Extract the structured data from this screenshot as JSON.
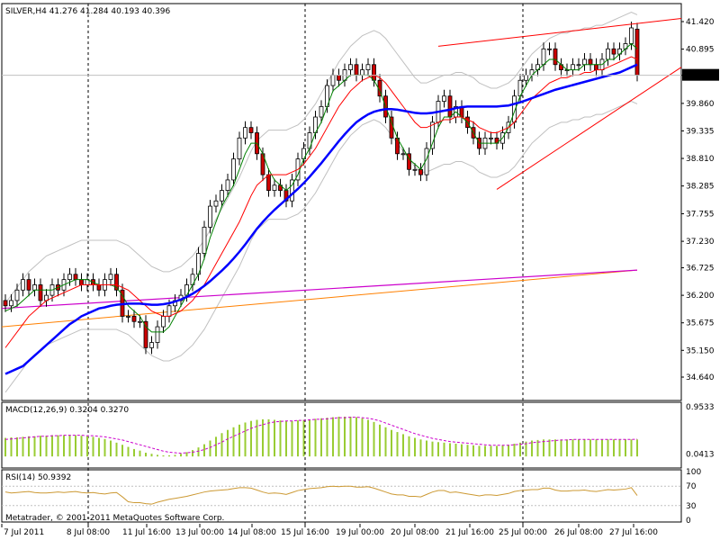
{
  "header": {
    "symbol_line": "SILVER,H4  41.276 41.284 40.193 40.396",
    "last_price": "40.396"
  },
  "footer": {
    "copyright": "Metatrader, © 2001-2011 MetaQuotes Software Corp."
  },
  "colors": {
    "up_candle": "#ffffff",
    "down_candle": "#cc0000",
    "bollinger": "#c0c0c0",
    "ma_fast": "#008000",
    "ma_mid": "#ff0000",
    "ma_slow": "#0000ff",
    "ma_long_a": "#ff8000",
    "ma_long_b": "#cc00cc",
    "trendline": "#ff0000",
    "macd_hist": "#99cc33",
    "macd_signal": "#cc00cc",
    "rsi_line": "#cc9933"
  },
  "chart_data": [
    {
      "type": "candlestick",
      "title": "SILVER,H4",
      "ohlc_readout": {
        "open": 41.276,
        "high": 41.284,
        "low": 40.193,
        "close": 40.396
      },
      "y_ticks": [
        "41.420",
        "40.895",
        "40.396",
        "39.860",
        "39.335",
        "38.810",
        "38.285",
        "37.755",
        "37.230",
        "36.725",
        "36.200",
        "35.675",
        "35.150",
        "34.640"
      ],
      "ylim": [
        34.64,
        41.42
      ],
      "x_ticks": [
        "7 Jul 2011",
        "8 Jul 08:00",
        "11 Jul 16:00",
        "13 Jul 00:00",
        "14 Jul 08:00",
        "15 Jul 16:00",
        "19 Jul 00:00",
        "20 Jul 08:00",
        "21 Jul 16:00",
        "25 Jul 00:00",
        "26 Jul 08:00",
        "27 Jul 16:00"
      ],
      "close": [
        36.0,
        36.1,
        36.3,
        36.5,
        36.3,
        36.4,
        36.1,
        36.2,
        36.4,
        36.3,
        36.5,
        36.6,
        36.5,
        36.4,
        36.5,
        36.4,
        36.3,
        36.5,
        36.6,
        36.3,
        35.8,
        35.8,
        35.7,
        35.7,
        35.2,
        35.3,
        35.6,
        35.8,
        36.0,
        36.1,
        36.2,
        36.4,
        36.6,
        37.0,
        37.5,
        37.9,
        38.0,
        38.2,
        38.4,
        38.8,
        39.2,
        39.4,
        39.3,
        38.9,
        38.5,
        38.2,
        38.3,
        38.2,
        38.0,
        38.4,
        38.8,
        39.0,
        39.3,
        39.6,
        39.8,
        40.2,
        40.4,
        40.3,
        40.5,
        40.6,
        40.4,
        40.5,
        40.6,
        40.3,
        40.0,
        39.6,
        39.2,
        38.9,
        38.9,
        38.6,
        38.6,
        38.5,
        39.0,
        39.5,
        39.9,
        40.0,
        39.6,
        39.8,
        39.6,
        39.4,
        39.2,
        39.0,
        39.2,
        39.2,
        39.1,
        39.3,
        39.5,
        40.0,
        40.3,
        40.4,
        40.5,
        40.6,
        40.9,
        40.9,
        40.6,
        40.5,
        40.5,
        40.6,
        40.6,
        40.7,
        40.6,
        40.5,
        40.7,
        40.9,
        40.8,
        40.9,
        41.0,
        41.3,
        40.4
      ],
      "open": [
        36.1,
        36.0,
        36.1,
        36.3,
        36.5,
        36.3,
        36.4,
        36.1,
        36.2,
        36.4,
        36.3,
        36.5,
        36.6,
        36.5,
        36.4,
        36.5,
        36.4,
        36.3,
        36.5,
        36.6,
        36.3,
        35.8,
        35.8,
        35.7,
        35.7,
        35.2,
        35.3,
        35.6,
        35.8,
        36.0,
        36.1,
        36.2,
        36.4,
        36.6,
        37.0,
        37.5,
        37.9,
        38.0,
        38.2,
        38.4,
        38.8,
        39.2,
        39.4,
        39.3,
        38.9,
        38.5,
        38.2,
        38.3,
        38.2,
        38.0,
        38.4,
        38.8,
        39.0,
        39.3,
        39.6,
        39.8,
        40.2,
        40.4,
        40.3,
        40.5,
        40.6,
        40.4,
        40.5,
        40.6,
        40.3,
        40.0,
        39.6,
        39.2,
        38.9,
        38.9,
        38.6,
        38.6,
        38.5,
        39.0,
        39.5,
        39.9,
        40.0,
        39.6,
        39.8,
        39.6,
        39.4,
        39.2,
        39.0,
        39.2,
        39.2,
        39.1,
        39.3,
        39.5,
        40.0,
        40.3,
        40.4,
        40.5,
        40.6,
        40.9,
        40.9,
        40.6,
        40.5,
        40.5,
        40.6,
        40.6,
        40.7,
        40.6,
        40.5,
        40.7,
        40.9,
        40.8,
        40.9,
        41.0,
        41.276
      ],
      "series": [
        {
          "name": "MA fast",
          "values": [
            35.9,
            35.95,
            36.0,
            36.1,
            36.2,
            36.3,
            36.3,
            36.3,
            36.3,
            36.35,
            36.4,
            36.45,
            36.5,
            36.5,
            36.5,
            36.45,
            36.4,
            36.4,
            36.4,
            36.35,
            36.2,
            36.0,
            35.9,
            35.8,
            35.6,
            35.5,
            35.5,
            35.5,
            35.6,
            35.8,
            36.0,
            36.2,
            36.4,
            36.6,
            36.9,
            37.3,
            37.6,
            37.9,
            38.1,
            38.3,
            38.6,
            38.9,
            39.1,
            39.1,
            38.9,
            38.6,
            38.4,
            38.3,
            38.2,
            38.3,
            38.5,
            38.8,
            39.0,
            39.3,
            39.5,
            39.8,
            40.1,
            40.2,
            40.3,
            40.4,
            40.4,
            40.4,
            40.4,
            40.3,
            40.1,
            39.8,
            39.5,
            39.2,
            39.0,
            38.8,
            38.7,
            38.6,
            38.8,
            39.1,
            39.4,
            39.6,
            39.6,
            39.7,
            39.6,
            39.5,
            39.3,
            39.1,
            39.1,
            39.1,
            39.1,
            39.2,
            39.4,
            39.7,
            40.0,
            40.2,
            40.4,
            40.5,
            40.6,
            40.7,
            40.7,
            40.6,
            40.5,
            40.5,
            40.5,
            40.6,
            40.6,
            40.6,
            40.6,
            40.7,
            40.7,
            40.8,
            40.9,
            41.0,
            40.9
          ]
        },
        {
          "name": "MA mid",
          "values": [
            35.2,
            35.35,
            35.5,
            35.65,
            35.8,
            35.9,
            36.0,
            36.1,
            36.15,
            36.2,
            36.25,
            36.3,
            36.35,
            36.4,
            36.4,
            36.4,
            36.4,
            36.4,
            36.4,
            36.4,
            36.35,
            36.3,
            36.2,
            36.1,
            36.0,
            35.9,
            35.85,
            35.8,
            35.8,
            35.85,
            35.9,
            36.0,
            36.1,
            36.25,
            36.4,
            36.6,
            36.8,
            37.0,
            37.2,
            37.4,
            37.6,
            37.85,
            38.1,
            38.3,
            38.4,
            38.5,
            38.5,
            38.5,
            38.5,
            38.55,
            38.6,
            38.7,
            38.85,
            39.0,
            39.2,
            39.4,
            39.6,
            39.8,
            39.95,
            40.1,
            40.2,
            40.3,
            40.35,
            40.4,
            40.35,
            40.25,
            40.1,
            39.95,
            39.8,
            39.65,
            39.5,
            39.4,
            39.4,
            39.45,
            39.5,
            39.55,
            39.55,
            39.6,
            39.6,
            39.55,
            39.5,
            39.4,
            39.35,
            39.3,
            39.3,
            39.35,
            39.4,
            39.5,
            39.65,
            39.8,
            39.95,
            40.05,
            40.15,
            40.25,
            40.3,
            40.35,
            40.35,
            40.4,
            40.4,
            40.45,
            40.45,
            40.5,
            40.5,
            40.55,
            40.6,
            40.65,
            40.7,
            40.75,
            40.7
          ]
        },
        {
          "name": "MA slow",
          "values": [
            34.7,
            34.75,
            34.8,
            34.85,
            34.95,
            35.05,
            35.15,
            35.25,
            35.35,
            35.45,
            35.55,
            35.65,
            35.72,
            35.8,
            35.85,
            35.9,
            35.95,
            35.97,
            36.0,
            36.02,
            36.03,
            36.04,
            36.04,
            36.04,
            36.03,
            36.02,
            36.02,
            36.03,
            36.05,
            36.08,
            36.12,
            36.17,
            36.23,
            36.3,
            36.38,
            36.47,
            36.57,
            36.67,
            36.78,
            36.9,
            37.03,
            37.17,
            37.32,
            37.47,
            37.6,
            37.72,
            37.83,
            37.93,
            38.03,
            38.13,
            38.23,
            38.34,
            38.46,
            38.59,
            38.72,
            38.86,
            39.0,
            39.14,
            39.27,
            39.39,
            39.5,
            39.58,
            39.65,
            39.7,
            39.73,
            39.75,
            39.75,
            39.74,
            39.72,
            39.7,
            39.68,
            39.67,
            39.67,
            39.68,
            39.7,
            39.72,
            39.74,
            39.77,
            39.79,
            39.8,
            39.8,
            39.8,
            39.8,
            39.8,
            39.8,
            39.81,
            39.82,
            39.85,
            39.88,
            39.92,
            39.96,
            40.0,
            40.04,
            40.08,
            40.12,
            40.15,
            40.18,
            40.21,
            40.24,
            40.27,
            40.3,
            40.33,
            40.36,
            40.39,
            40.42,
            40.45,
            40.5,
            40.55,
            40.6
          ]
        },
        {
          "name": "MA long A",
          "start": 35.6,
          "end": 36.68
        },
        {
          "name": "MA long B",
          "start": 35.95,
          "end": 36.68
        }
      ],
      "trendlines": [
        {
          "from": {
            "bar": 74,
            "price": 40.95
          },
          "to": {
            "bar": 133,
            "price": 41.48
          }
        },
        {
          "from": {
            "bar": 84,
            "price": 38.22
          },
          "to": {
            "bar": 133,
            "price": 40.55
          }
        }
      ]
    },
    {
      "type": "bar",
      "title": "MACD(12,26,9) 0.3204 0.3270",
      "y_ticks": [
        "0.9533",
        "0.0413"
      ],
      "ylim": [
        -0.15,
        0.9533
      ],
      "values": [
        0.35,
        0.36,
        0.36,
        0.37,
        0.38,
        0.38,
        0.39,
        0.39,
        0.4,
        0.4,
        0.4,
        0.4,
        0.4,
        0.39,
        0.38,
        0.37,
        0.35,
        0.33,
        0.3,
        0.26,
        0.22,
        0.18,
        0.14,
        0.11,
        0.07,
        0.05,
        0.03,
        0.02,
        0.02,
        0.03,
        0.05,
        0.08,
        0.12,
        0.17,
        0.23,
        0.3,
        0.37,
        0.44,
        0.5,
        0.55,
        0.6,
        0.64,
        0.67,
        0.69,
        0.7,
        0.7,
        0.69,
        0.68,
        0.67,
        0.67,
        0.68,
        0.69,
        0.7,
        0.71,
        0.72,
        0.73,
        0.74,
        0.75,
        0.75,
        0.75,
        0.74,
        0.72,
        0.69,
        0.65,
        0.6,
        0.55,
        0.5,
        0.46,
        0.42,
        0.38,
        0.35,
        0.32,
        0.3,
        0.28,
        0.27,
        0.26,
        0.25,
        0.24,
        0.23,
        0.22,
        0.21,
        0.2,
        0.2,
        0.2,
        0.2,
        0.21,
        0.22,
        0.24,
        0.26,
        0.28,
        0.3,
        0.31,
        0.32,
        0.32,
        0.32,
        0.32,
        0.32,
        0.32,
        0.32,
        0.32,
        0.32,
        0.32,
        0.32,
        0.32,
        0.32,
        0.32,
        0.32,
        0.32,
        0.32
      ],
      "signal": [
        0.32,
        0.33,
        0.34,
        0.35,
        0.36,
        0.37,
        0.38,
        0.38,
        0.39,
        0.39,
        0.4,
        0.4,
        0.4,
        0.4,
        0.39,
        0.39,
        0.38,
        0.37,
        0.35,
        0.33,
        0.31,
        0.28,
        0.25,
        0.22,
        0.19,
        0.16,
        0.13,
        0.1,
        0.08,
        0.07,
        0.06,
        0.07,
        0.08,
        0.1,
        0.13,
        0.17,
        0.22,
        0.27,
        0.33,
        0.38,
        0.43,
        0.48,
        0.53,
        0.57,
        0.6,
        0.63,
        0.65,
        0.66,
        0.67,
        0.67,
        0.68,
        0.68,
        0.69,
        0.7,
        0.7,
        0.71,
        0.72,
        0.73,
        0.73,
        0.74,
        0.74,
        0.73,
        0.72,
        0.7,
        0.67,
        0.63,
        0.59,
        0.55,
        0.51,
        0.47,
        0.43,
        0.4,
        0.37,
        0.34,
        0.32,
        0.3,
        0.28,
        0.27,
        0.26,
        0.25,
        0.24,
        0.23,
        0.22,
        0.21,
        0.21,
        0.21,
        0.21,
        0.22,
        0.23,
        0.24,
        0.26,
        0.27,
        0.28,
        0.29,
        0.3,
        0.31,
        0.31,
        0.32,
        0.32,
        0.32,
        0.32,
        0.32,
        0.32,
        0.32,
        0.32,
        0.32,
        0.32,
        0.32,
        0.327
      ]
    },
    {
      "type": "line",
      "title": "RSI(14) 50.9392",
      "y_ticks": [
        "100",
        "70",
        "30",
        "0"
      ],
      "ylim": [
        0,
        100
      ],
      "levels": [
        70,
        30
      ],
      "values": [
        58,
        56,
        57,
        58,
        59,
        57,
        56,
        56,
        57,
        58,
        57,
        58,
        59,
        57,
        56,
        57,
        55,
        54,
        56,
        57,
        48,
        38,
        36,
        36,
        34,
        33,
        37,
        40,
        43,
        45,
        47,
        49,
        52,
        55,
        58,
        60,
        61,
        62,
        63,
        65,
        67,
        67,
        66,
        62,
        58,
        55,
        56,
        55,
        53,
        57,
        61,
        63,
        65,
        66,
        67,
        69,
        70,
        69,
        70,
        70,
        68,
        68,
        69,
        66,
        62,
        58,
        54,
        52,
        52,
        49,
        49,
        48,
        53,
        58,
        61,
        61,
        57,
        58,
        56,
        54,
        52,
        50,
        52,
        52,
        51,
        53,
        55,
        59,
        61,
        62,
        63,
        63,
        66,
        66,
        62,
        60,
        60,
        61,
        61,
        62,
        60,
        59,
        61,
        63,
        62,
        63,
        64,
        67,
        50.9
      ]
    }
  ]
}
